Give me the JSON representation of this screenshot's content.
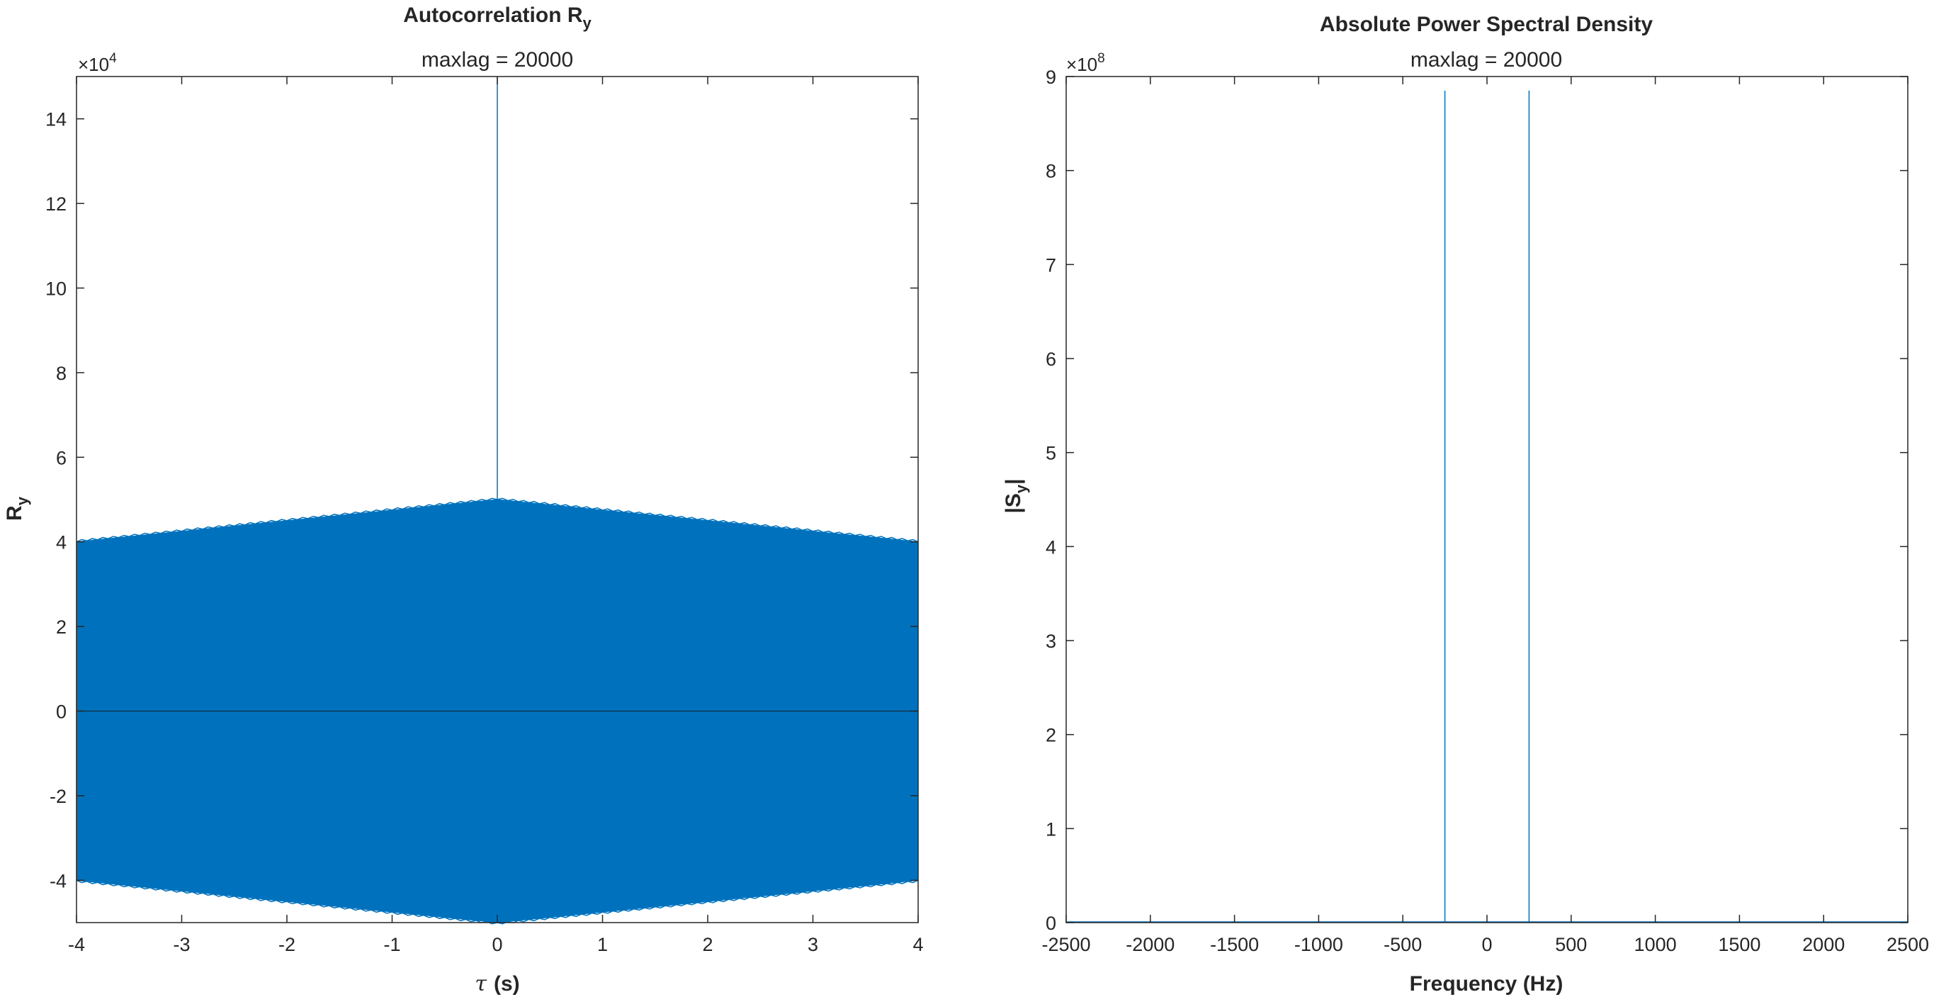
{
  "chart_data": [
    {
      "type": "line",
      "title": "Autocorrelation R",
      "title_subscript": "y",
      "subtitle": "maxlag = 20000",
      "xlabel_symbol": "τ",
      "xlabel_unit": "(s)",
      "ylabel": "R",
      "ylabel_subscript": "y",
      "exponent_base": "×10",
      "exponent_power": "4",
      "xlim": [
        -4,
        4
      ],
      "ylim": [
        -5,
        15
      ],
      "xticks": [
        -4,
        -3,
        -2,
        -1,
        0,
        1,
        2,
        3,
        4
      ],
      "xtick_labels": [
        "-4",
        "-3",
        "-2",
        "-1",
        "0",
        "1",
        "2",
        "3",
        "4"
      ],
      "yticks": [
        -4,
        -2,
        0,
        2,
        4,
        6,
        8,
        10,
        12,
        14
      ],
      "ytick_labels": [
        "-4",
        "-2",
        "0",
        "2",
        "4",
        "6",
        "8",
        "10",
        "12",
        "14"
      ],
      "series": [
        {
          "name": "Ry envelope (oscillation fills band)",
          "color": "#0072BD",
          "x": [
            -4,
            0,
            4
          ],
          "upper": [
            4.0,
            5.0,
            4.0
          ],
          "lower": [
            -4.0,
            -5.0,
            -4.0
          ]
        },
        {
          "name": "Ry peak at zero lag",
          "color": "#0072BD",
          "x": [
            0,
            0
          ],
          "y": [
            5.0,
            15.0
          ]
        }
      ],
      "baseline": 0
    },
    {
      "type": "line",
      "title": "Absolute Power Spectral Density",
      "subtitle": "maxlag = 20000",
      "xlabel": "Frequency (Hz)",
      "ylabel_prefix": "|S",
      "ylabel_subscript": "y",
      "ylabel_suffix": "|",
      "exponent_base": "×10",
      "exponent_power": "8",
      "xlim": [
        -2500,
        2500
      ],
      "ylim": [
        0,
        9
      ],
      "xticks": [
        -2500,
        -2000,
        -1500,
        -1000,
        -500,
        0,
        500,
        1000,
        1500,
        2000,
        2500
      ],
      "xtick_labels": [
        "-2500",
        "-2000",
        "-1500",
        "-1000",
        "-500",
        "0",
        "500",
        "1000",
        "1500",
        "2000",
        "2500"
      ],
      "yticks": [
        0,
        1,
        2,
        3,
        4,
        5,
        6,
        7,
        8,
        9
      ],
      "ytick_labels": [
        "0",
        "1",
        "2",
        "3",
        "4",
        "5",
        "6",
        "7",
        "8",
        "9"
      ],
      "series": [
        {
          "name": "|Sy|",
          "color": "#0072BD",
          "peaks": [
            {
              "x": -250,
              "y": 8.85
            },
            {
              "x": 250,
              "y": 8.85
            }
          ]
        }
      ]
    }
  ]
}
